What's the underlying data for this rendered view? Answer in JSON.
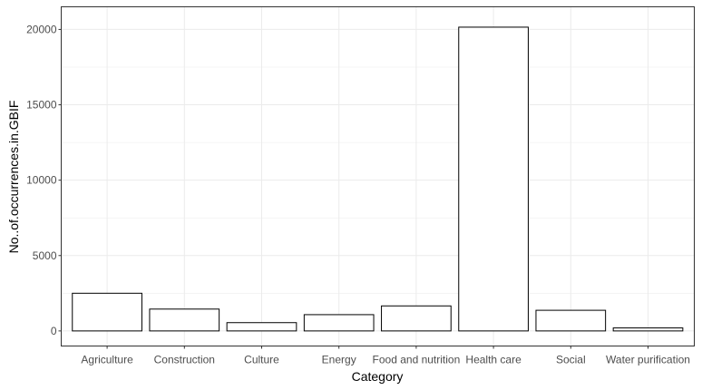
{
  "chart_data": {
    "type": "bar",
    "title": "",
    "xlabel": "Category",
    "ylabel": "No..of.occurrences.in.GBIF",
    "categories": [
      "Agriculture",
      "Construction",
      "Culture",
      "Energy",
      "Food and nutrition",
      "Health care",
      "Social",
      "Water purification"
    ],
    "values": [
      2500,
      1450,
      550,
      1080,
      1660,
      20150,
      1370,
      200
    ],
    "ylim": [
      -1000,
      21500
    ],
    "yticks": [
      0,
      5000,
      10000,
      15000,
      20000
    ],
    "ytick_labels": [
      "0",
      "5000",
      "10000",
      "15000",
      "20000"
    ],
    "grid": true,
    "bar_fill": "#ffffff",
    "bar_stroke": "#000000",
    "grid_color": "#ebebeb"
  }
}
